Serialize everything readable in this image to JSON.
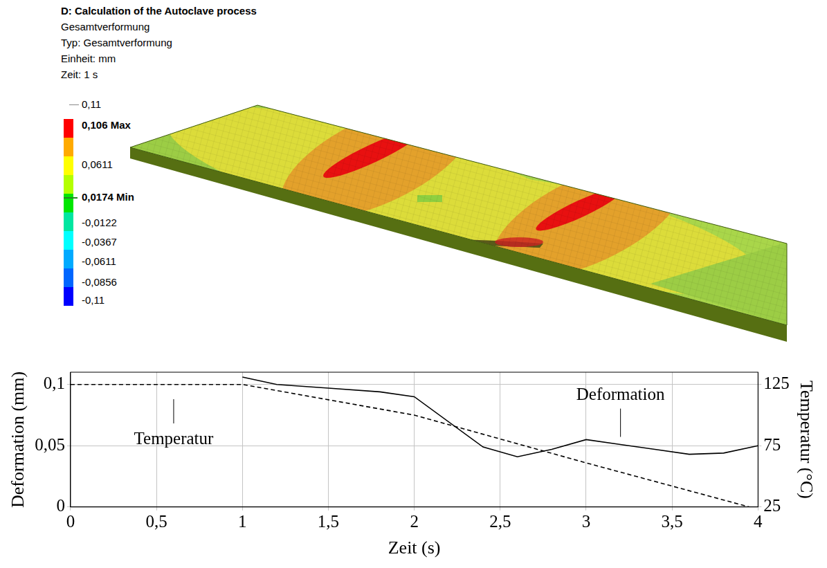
{
  "header": {
    "title": "D: Calculation of the Autoclave process",
    "lines": [
      "Gesamtverformung",
      "Typ: Gesamtverformung",
      "Einheit: mm",
      "Zeit: 1 s"
    ]
  },
  "color_bar": {
    "colors": [
      "#ff0000",
      "#ffaa00",
      "#ffff00",
      "#b4ff00",
      "#00e600",
      "#00e6a0",
      "#00ffff",
      "#00aaff",
      "#0066ff",
      "#0000ff"
    ],
    "ticks": [
      {
        "value": 0.11,
        "label": "0,11"
      },
      {
        "value": 0.106,
        "label": "0,106 Max"
      },
      {
        "value": 0.0611,
        "label": "0,0611"
      },
      {
        "value": 0.0174,
        "label": "0,0174 Min"
      },
      {
        "value": -0.0122,
        "label": "-0,0122"
      },
      {
        "value": -0.0367,
        "label": "-0,0367"
      },
      {
        "value": -0.0611,
        "label": "-0,0611"
      },
      {
        "value": -0.0856,
        "label": "-0,0856"
      },
      {
        "value": -0.11,
        "label": "-0,11"
      }
    ],
    "max": 0.106,
    "min": 0.0174
  },
  "chart_data": {
    "type": "line",
    "x_label": "Zeit (s)",
    "y_label": "Deformation (mm)",
    "y2_label": "Temperatur (°C)",
    "xlim": [
      0,
      4
    ],
    "xticks": [
      0,
      {
        "value": 0.5,
        "label": "0,5"
      },
      1,
      {
        "value": 1.5,
        "label": "1,5"
      },
      2,
      {
        "value": 2.5,
        "label": "2,5"
      },
      3,
      {
        "value": 3.5,
        "label": "3,5"
      },
      4
    ],
    "ylim": [
      0,
      0.11
    ],
    "yticks": [
      0,
      {
        "value": 0.05,
        "label": "0,05"
      },
      {
        "value": 0.1,
        "label": "0,1"
      }
    ],
    "y2lim": [
      25,
      135
    ],
    "y2ticks": [
      25,
      75,
      125
    ],
    "grid": true,
    "series": [
      {
        "name": "Deformation",
        "color": "#000000",
        "line_style": "solid",
        "x": [
          1,
          1.2,
          1.5,
          1.8,
          2,
          2.4,
          2.6,
          2.8,
          3,
          3.2,
          3.4,
          3.6,
          3.8,
          4
        ],
        "values": [
          0.106,
          0.1,
          0.097,
          0.094,
          0.09,
          0.049,
          0.041,
          0.047,
          0.055,
          0.051,
          0.047,
          0.043,
          0.044,
          0.05
        ]
      },
      {
        "name": "Temperatur",
        "color": "#000000",
        "line_style": "dashed",
        "axis": "y2",
        "x": [
          0,
          1,
          2,
          3,
          3.95
        ],
        "values": [
          125,
          125,
          100,
          61,
          25
        ]
      }
    ]
  }
}
